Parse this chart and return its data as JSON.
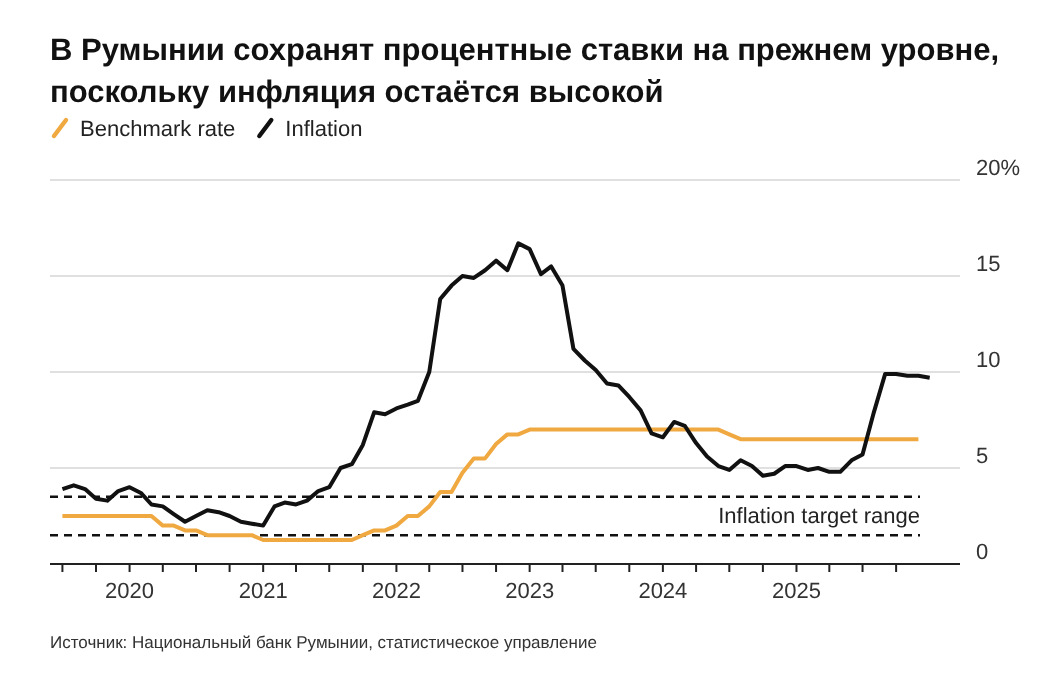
{
  "chart_data": {
    "type": "line",
    "title": "В Румынии сохранят процентные ставки на прежнем уровне, поскольку инфляция остаётся высокой",
    "x": [
      "2019-07",
      "2019-08",
      "2019-09",
      "2019-10",
      "2019-11",
      "2019-12",
      "2020-01",
      "2020-02",
      "2020-03",
      "2020-04",
      "2020-05",
      "2020-06",
      "2020-07",
      "2020-08",
      "2020-09",
      "2020-10",
      "2020-11",
      "2020-12",
      "2021-01",
      "2021-02",
      "2021-03",
      "2021-04",
      "2021-05",
      "2021-06",
      "2021-07",
      "2021-08",
      "2021-09",
      "2021-10",
      "2021-11",
      "2021-12",
      "2022-01",
      "2022-02",
      "2022-03",
      "2022-04",
      "2022-05",
      "2022-06",
      "2022-07",
      "2022-08",
      "2022-09",
      "2022-10",
      "2022-11",
      "2022-12",
      "2023-01",
      "2023-02",
      "2023-03",
      "2023-04",
      "2023-05",
      "2023-06",
      "2023-07",
      "2023-08",
      "2023-09",
      "2023-10",
      "2023-11",
      "2023-12",
      "2024-01",
      "2024-02",
      "2024-03",
      "2024-04",
      "2024-05",
      "2024-06",
      "2024-07",
      "2024-08",
      "2024-09",
      "2024-10",
      "2024-11",
      "2024-12",
      "2025-01",
      "2025-02",
      "2025-03",
      "2025-04",
      "2025-05",
      "2025-06",
      "2025-07",
      "2025-08",
      "2025-09",
      "2025-10",
      "2025-11",
      "2025-12",
      "2026-01"
    ],
    "series": [
      {
        "name": "Benchmark rate",
        "color": "#f0a941",
        "values": [
          2.5,
          2.5,
          2.5,
          2.5,
          2.5,
          2.5,
          2.5,
          2.5,
          2.5,
          2.0,
          2.0,
          1.75,
          1.75,
          1.5,
          1.5,
          1.5,
          1.5,
          1.5,
          1.25,
          1.25,
          1.25,
          1.25,
          1.25,
          1.25,
          1.25,
          1.25,
          1.25,
          1.5,
          1.75,
          1.75,
          2.0,
          2.5,
          2.5,
          3.0,
          3.75,
          3.75,
          4.75,
          5.5,
          5.5,
          6.25,
          6.75,
          6.75,
          7.0,
          7.0,
          7.0,
          7.0,
          7.0,
          7.0,
          7.0,
          7.0,
          7.0,
          7.0,
          7.0,
          7.0,
          7.0,
          7.0,
          7.0,
          7.0,
          7.0,
          7.0,
          6.75,
          6.5,
          6.5,
          6.5,
          6.5,
          6.5,
          6.5,
          6.5,
          6.5,
          6.5,
          6.5,
          6.5,
          6.5,
          6.5,
          6.5,
          6.5,
          6.5,
          6.5,
          null
        ]
      },
      {
        "name": "Inflation",
        "color": "#111111",
        "values": [
          3.9,
          4.1,
          3.9,
          3.4,
          3.3,
          3.8,
          4.0,
          3.7,
          3.1,
          3.0,
          2.6,
          2.2,
          2.5,
          2.8,
          2.7,
          2.5,
          2.2,
          2.1,
          2.0,
          3.0,
          3.2,
          3.1,
          3.3,
          3.8,
          4.0,
          5.0,
          5.2,
          6.2,
          7.9,
          7.8,
          8.1,
          8.3,
          8.5,
          10.0,
          13.8,
          14.5,
          15.0,
          14.9,
          15.3,
          15.8,
          15.3,
          16.7,
          16.4,
          15.1,
          15.5,
          14.5,
          11.2,
          10.6,
          10.1,
          9.4,
          9.3,
          8.7,
          8.0,
          6.8,
          6.6,
          7.4,
          7.2,
          6.3,
          5.6,
          5.1,
          4.9,
          5.4,
          5.1,
          4.6,
          4.7,
          5.1,
          5.1,
          4.9,
          5.0,
          4.8,
          4.8,
          5.4,
          5.7,
          7.9,
          9.9,
          9.9,
          9.8,
          9.8,
          9.7
        ]
      }
    ],
    "xlim": [
      "2019-05-28",
      "2026-03-25"
    ],
    "xticks": [
      {
        "value": "2019-07",
        "label": null
      },
      {
        "value": "2019-10",
        "label": null
      },
      {
        "value": "2020-01",
        "label": "2020"
      },
      {
        "value": "2020-04",
        "label": null
      },
      {
        "value": "2020-07",
        "label": null
      },
      {
        "value": "2020-10",
        "label": null
      },
      {
        "value": "2021-01",
        "label": "2021"
      },
      {
        "value": "2021-04",
        "label": null
      },
      {
        "value": "2021-07",
        "label": null
      },
      {
        "value": "2021-10",
        "label": null
      },
      {
        "value": "2022-01",
        "label": "2022"
      },
      {
        "value": "2022-04",
        "label": null
      },
      {
        "value": "2022-07",
        "label": null
      },
      {
        "value": "2022-10",
        "label": null
      },
      {
        "value": "2023-01",
        "label": "2023"
      },
      {
        "value": "2023-04",
        "label": null
      },
      {
        "value": "2023-07",
        "label": null
      },
      {
        "value": "2023-10",
        "label": null
      },
      {
        "value": "2024-01",
        "label": "2024"
      },
      {
        "value": "2024-04",
        "label": null
      },
      {
        "value": "2024-07",
        "label": null
      },
      {
        "value": "2024-10",
        "label": null
      },
      {
        "value": "2025-01",
        "label": "2025"
      },
      {
        "value": "2025-04",
        "label": null
      },
      {
        "value": "2025-07",
        "label": null
      },
      {
        "value": "2025-10",
        "label": null
      }
    ],
    "ylim": [
      0,
      20
    ],
    "yticks": [
      0,
      5,
      10,
      15,
      {
        "value": 20,
        "label": "20%"
      }
    ],
    "grid": "y",
    "legend": "top left",
    "line_style": "solid",
    "marker": "none",
    "ref_lines": [
      {
        "axis": "y",
        "value": 3.5,
        "label": "Inflation target range",
        "line_style": "dashed",
        "color": "#111111"
      },
      {
        "axis": "y",
        "value": 1.5,
        "line_style": "dashed",
        "color": "#111111"
      }
    ],
    "annotations": [
      "Источник: Национальный банк Румынии, статистическое управление"
    ]
  }
}
